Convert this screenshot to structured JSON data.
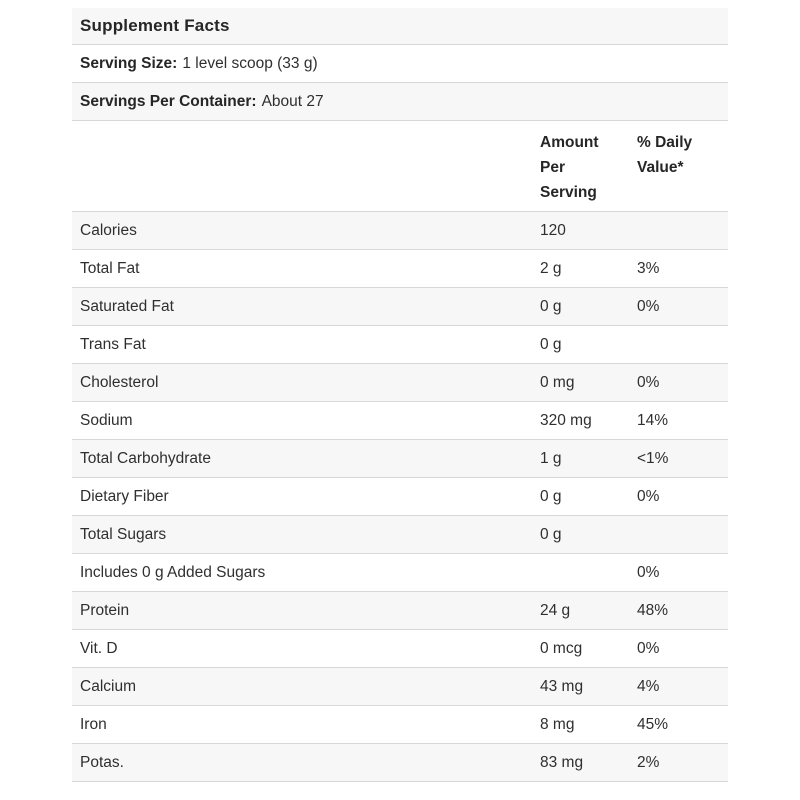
{
  "table": {
    "title": "Supplement Facts",
    "serving_size": {
      "label": "Serving Size:",
      "value": "1 level scoop (33 g)"
    },
    "servings_per_container": {
      "label": "Servings Per Container:",
      "value": "About 27"
    },
    "columns": {
      "amount": "Amount Per Serving",
      "daily_value": "% Daily Value*"
    },
    "rows": [
      {
        "label": "Calories",
        "amount": "120",
        "daily_value": ""
      },
      {
        "label": "Total Fat",
        "amount": "2 g",
        "daily_value": "3%"
      },
      {
        "label": "Saturated Fat",
        "amount": "0 g",
        "daily_value": "0%"
      },
      {
        "label": "Trans Fat",
        "amount": "0 g",
        "daily_value": ""
      },
      {
        "label": "Cholesterol",
        "amount": "0 mg",
        "daily_value": "0%"
      },
      {
        "label": "Sodium",
        "amount": "320 mg",
        "daily_value": "14%"
      },
      {
        "label": "Total Carbohydrate",
        "amount": "1 g",
        "daily_value": "<1%"
      },
      {
        "label": "Dietary Fiber",
        "amount": "0 g",
        "daily_value": "0%"
      },
      {
        "label": "Total Sugars",
        "amount": "0 g",
        "daily_value": ""
      },
      {
        "label": "Includes 0 g Added Sugars",
        "amount": "",
        "daily_value": "0%"
      },
      {
        "label": "Protein",
        "amount": "24 g",
        "daily_value": "48%"
      },
      {
        "label": "Vit. D",
        "amount": "0 mcg",
        "daily_value": "0%"
      },
      {
        "label": "Calcium",
        "amount": "43 mg",
        "daily_value": "4%"
      },
      {
        "label": "Iron",
        "amount": "8 mg",
        "daily_value": "45%"
      },
      {
        "label": "Potas.",
        "amount": "83 mg",
        "daily_value": "2%"
      }
    ]
  },
  "colors": {
    "stripe_bg": "#f7f7f7",
    "divider": "#d8d8dc",
    "text": "#2f2f2f"
  }
}
